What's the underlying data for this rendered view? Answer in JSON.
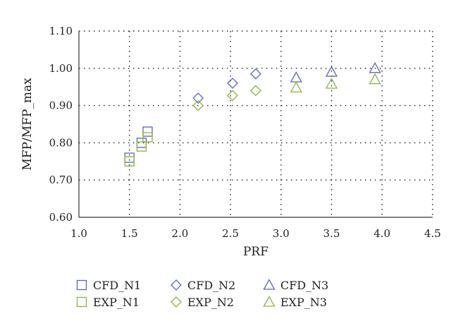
{
  "chart_data": {
    "type": "scatter",
    "xlabel": "PRF",
    "ylabel": "MFP/MFP_max",
    "xlim": [
      1.0,
      4.5
    ],
    "ylim": [
      0.6,
      1.1
    ],
    "x_ticks": [
      "1.0",
      "1.5",
      "2.0",
      "2.5",
      "3.0",
      "3.5",
      "4.0",
      "4.5"
    ],
    "y_ticks": [
      "0.60",
      "0.70",
      "0.80",
      "0.90",
      "1.00",
      "1.10"
    ],
    "grid": "dotted",
    "legend_position": "bottom",
    "series": [
      {
        "name": "CFD_N1",
        "marker": "square",
        "color": "#5a67b8",
        "points": [
          {
            "x": 1.5,
            "y": 0.76
          },
          {
            "x": 1.62,
            "y": 0.8
          },
          {
            "x": 1.68,
            "y": 0.83
          }
        ]
      },
      {
        "name": "EXP_N1",
        "marker": "square",
        "color": "#8cb33a",
        "points": [
          {
            "x": 1.5,
            "y": 0.75
          },
          {
            "x": 1.62,
            "y": 0.79
          },
          {
            "x": 1.68,
            "y": 0.815
          }
        ]
      },
      {
        "name": "CFD_N2",
        "marker": "diamond",
        "color": "#5a67b8",
        "points": [
          {
            "x": 2.18,
            "y": 0.92
          },
          {
            "x": 2.52,
            "y": 0.96
          },
          {
            "x": 2.75,
            "y": 0.985
          }
        ]
      },
      {
        "name": "EXP_N2",
        "marker": "diamond",
        "color": "#8cb33a",
        "points": [
          {
            "x": 2.18,
            "y": 0.9
          },
          {
            "x": 2.52,
            "y": 0.927
          },
          {
            "x": 2.75,
            "y": 0.94
          }
        ]
      },
      {
        "name": "CFD_N3",
        "marker": "triangle",
        "color": "#5a67b8",
        "points": [
          {
            "x": 3.15,
            "y": 0.975
          },
          {
            "x": 3.5,
            "y": 0.99
          },
          {
            "x": 3.93,
            "y": 1.0
          }
        ]
      },
      {
        "name": "EXP_N3",
        "marker": "triangle",
        "color": "#8cb33a",
        "points": [
          {
            "x": 3.15,
            "y": 0.948
          },
          {
            "x": 3.5,
            "y": 0.958
          },
          {
            "x": 3.93,
            "y": 0.97
          }
        ]
      }
    ]
  }
}
